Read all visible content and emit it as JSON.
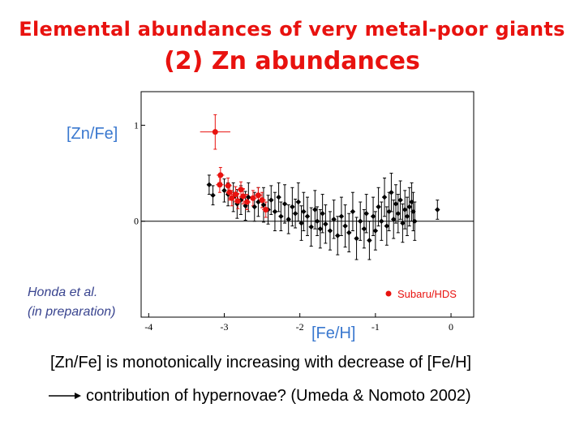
{
  "header": {
    "title": "Elemental abundances of very metal-poor giants",
    "subtitle": "(2) Zn abundances"
  },
  "axis_labels": {
    "y": "[Zn/Fe]",
    "x": "[Fe/H]"
  },
  "credit": {
    "line1": "Honda et al.",
    "line2": "(in preparation)"
  },
  "statement": "[Zn/Fe] is monotonically increasing with decrease of [Fe/H]",
  "conclusion": "contribution of hypernovae? (Umeda & Nomoto 2002)",
  "colors": {
    "title": "#e8120f",
    "axis_label": "#3a78cf",
    "credit": "#39448f",
    "subaru": "#e8120f",
    "other": "#000000"
  },
  "chart_data": {
    "type": "scatter",
    "xlim": [
      -4.1,
      0.3
    ],
    "ylim": [
      -1.0,
      1.35
    ],
    "x_ticks": [
      {
        "v": -4,
        "label": "-4"
      },
      {
        "v": -3,
        "label": "-3"
      },
      {
        "v": -2,
        "label": "-2"
      },
      {
        "v": -1,
        "label": "-1"
      },
      {
        "v": 0,
        "label": "0"
      }
    ],
    "y_ticks": [
      {
        "v": 0,
        "label": "0"
      },
      {
        "v": 1,
        "label": "1"
      }
    ],
    "zero_line": true,
    "legend": {
      "label": "Subaru/HDS",
      "position": "bottom-right"
    },
    "series": [
      {
        "name": "Subaru/HDS",
        "color": "#e8120f",
        "points": [
          {
            "x": -3.12,
            "y": 0.93,
            "xerr": 0.2,
            "yerr": 0.18
          },
          {
            "x": -3.05,
            "y": 0.48,
            "xerr": 0.05,
            "yerr": 0.08
          },
          {
            "x": -3.06,
            "y": 0.38,
            "xerr": 0.05,
            "yerr": 0.08
          },
          {
            "x": -2.95,
            "y": 0.37,
            "xerr": 0.05,
            "yerr": 0.08
          },
          {
            "x": -2.93,
            "y": 0.3,
            "xerr": 0.05,
            "yerr": 0.08
          },
          {
            "x": -2.9,
            "y": 0.24,
            "xerr": 0.05,
            "yerr": 0.08
          },
          {
            "x": -2.85,
            "y": 0.28,
            "xerr": 0.05,
            "yerr": 0.08
          },
          {
            "x": -2.82,
            "y": 0.21,
            "xerr": 0.05,
            "yerr": 0.08
          },
          {
            "x": -2.78,
            "y": 0.33,
            "xerr": 0.05,
            "yerr": 0.08
          },
          {
            "x": -2.75,
            "y": 0.26,
            "xerr": 0.05,
            "yerr": 0.08
          },
          {
            "x": -2.7,
            "y": 0.2,
            "xerr": 0.05,
            "yerr": 0.08
          },
          {
            "x": -2.62,
            "y": 0.24,
            "xerr": 0.05,
            "yerr": 0.08
          },
          {
            "x": -2.55,
            "y": 0.27,
            "xerr": 0.05,
            "yerr": 0.08
          },
          {
            "x": -2.5,
            "y": 0.22,
            "xerr": 0.05,
            "yerr": 0.08
          },
          {
            "x": -2.45,
            "y": 0.12,
            "xerr": 0.05,
            "yerr": 0.08
          }
        ]
      },
      {
        "name": "",
        "color": "#000000",
        "points": [
          {
            "x": -3.2,
            "y": 0.38,
            "yerr": 0.1
          },
          {
            "x": -3.15,
            "y": 0.27,
            "yerr": 0.1
          },
          {
            "x": -3.0,
            "y": 0.32,
            "yerr": 0.12
          },
          {
            "x": -2.95,
            "y": 0.28,
            "yerr": 0.12
          },
          {
            "x": -2.88,
            "y": 0.25,
            "yerr": 0.15
          },
          {
            "x": -2.83,
            "y": 0.18,
            "yerr": 0.15
          },
          {
            "x": -2.78,
            "y": 0.22,
            "yerr": 0.15
          },
          {
            "x": -2.72,
            "y": 0.16,
            "yerr": 0.15
          },
          {
            "x": -2.68,
            "y": 0.25,
            "yerr": 0.15
          },
          {
            "x": -2.6,
            "y": 0.15,
            "yerr": 0.15
          },
          {
            "x": -2.55,
            "y": 0.2,
            "yerr": 0.15
          },
          {
            "x": -2.48,
            "y": 0.17,
            "yerr": 0.18
          },
          {
            "x": -2.42,
            "y": 0.12,
            "yerr": 0.15
          },
          {
            "x": -2.38,
            "y": 0.22,
            "yerr": 0.15
          },
          {
            "x": -2.33,
            "y": 0.1,
            "yerr": 0.2
          },
          {
            "x": -2.28,
            "y": 0.25,
            "yerr": 0.15
          },
          {
            "x": -2.25,
            "y": 0.05,
            "yerr": 0.15
          },
          {
            "x": -2.2,
            "y": 0.18,
            "yerr": 0.2
          },
          {
            "x": -2.15,
            "y": 0.02,
            "yerr": 0.15
          },
          {
            "x": -2.1,
            "y": 0.15,
            "yerr": 0.2
          },
          {
            "x": -2.06,
            "y": 0.08,
            "yerr": 0.15
          },
          {
            "x": -2.02,
            "y": 0.2,
            "yerr": 0.2
          },
          {
            "x": -1.98,
            "y": -0.02,
            "yerr": 0.18
          },
          {
            "x": -1.95,
            "y": 0.1,
            "yerr": 0.2
          },
          {
            "x": -1.9,
            "y": 0.05,
            "yerr": 0.2
          },
          {
            "x": -1.85,
            "y": -0.06,
            "yerr": 0.2
          },
          {
            "x": -1.8,
            "y": 0.12,
            "yerr": 0.2
          },
          {
            "x": -1.77,
            "y": 0.0,
            "yerr": 0.15
          },
          {
            "x": -1.73,
            "y": -0.08,
            "yerr": 0.2
          },
          {
            "x": -1.7,
            "y": 0.08,
            "yerr": 0.2
          },
          {
            "x": -1.66,
            "y": -0.03,
            "yerr": 0.2
          },
          {
            "x": -1.6,
            "y": -0.1,
            "yerr": 0.2
          },
          {
            "x": -1.55,
            "y": 0.02,
            "yerr": 0.2
          },
          {
            "x": -1.5,
            "y": -0.15,
            "yerr": 0.2
          },
          {
            "x": -1.45,
            "y": 0.05,
            "yerr": 0.2
          },
          {
            "x": -1.4,
            "y": -0.05,
            "yerr": 0.22
          },
          {
            "x": -1.35,
            "y": -0.12,
            "yerr": 0.2
          },
          {
            "x": -1.3,
            "y": 0.1,
            "yerr": 0.2
          },
          {
            "x": -1.25,
            "y": -0.18,
            "yerr": 0.22
          },
          {
            "x": -1.2,
            "y": 0.0,
            "yerr": 0.2
          },
          {
            "x": -1.15,
            "y": -0.08,
            "yerr": 0.2
          },
          {
            "x": -1.12,
            "y": 0.08,
            "yerr": 0.2
          },
          {
            "x": -1.08,
            "y": -0.2,
            "yerr": 0.2
          },
          {
            "x": -1.03,
            "y": 0.05,
            "yerr": 0.2
          },
          {
            "x": -1.0,
            "y": -0.1,
            "yerr": 0.2
          },
          {
            "x": -0.96,
            "y": 0.15,
            "yerr": 0.2
          },
          {
            "x": -0.92,
            "y": 0.0,
            "yerr": 0.2
          },
          {
            "x": -0.88,
            "y": 0.25,
            "yerr": 0.2
          },
          {
            "x": -0.85,
            "y": -0.05,
            "yerr": 0.2
          },
          {
            "x": -0.82,
            "y": 0.1,
            "yerr": 0.2
          },
          {
            "x": -0.79,
            "y": 0.3,
            "yerr": 0.2
          },
          {
            "x": -0.76,
            "y": 0.02,
            "yerr": 0.2
          },
          {
            "x": -0.73,
            "y": 0.18,
            "yerr": 0.2
          },
          {
            "x": -0.7,
            "y": 0.08,
            "yerr": 0.2
          },
          {
            "x": -0.67,
            "y": 0.22,
            "yerr": 0.2
          },
          {
            "x": -0.64,
            "y": -0.02,
            "yerr": 0.2
          },
          {
            "x": -0.61,
            "y": 0.12,
            "yerr": 0.2
          },
          {
            "x": -0.58,
            "y": 0.05,
            "yerr": 0.2
          },
          {
            "x": -0.55,
            "y": 0.15,
            "yerr": 0.2
          },
          {
            "x": -0.52,
            "y": 0.2,
            "yerr": 0.2
          },
          {
            "x": -0.5,
            "y": 0.1,
            "yerr": 0.2
          },
          {
            "x": -0.48,
            "y": 0.0,
            "yerr": 0.2
          },
          {
            "x": -0.18,
            "y": 0.12,
            "yerr": 0.1
          }
        ]
      }
    ]
  }
}
